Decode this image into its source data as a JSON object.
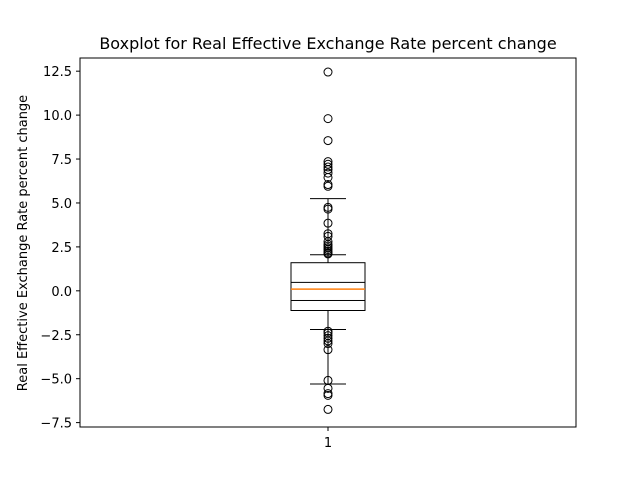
{
  "chart_data": {
    "type": "boxplot",
    "title": "Boxplot for Real Effective Exchange Rate percent change",
    "xlabel": "",
    "ylabel": "Real Effective Exchange Rate percent change",
    "categories": [
      "1"
    ],
    "ylim": [
      -7.75,
      13.25
    ],
    "yticks": [
      -7.5,
      -5.0,
      -2.5,
      0.0,
      2.5,
      5.0,
      7.5,
      10.0,
      12.5
    ],
    "ytick_labels": [
      "−7.5",
      "−5.0",
      "−2.5",
      "0.0",
      "2.5",
      "5.0",
      "7.5",
      "10.0",
      "12.5"
    ],
    "grid": false,
    "colors": {
      "box": "#000000",
      "median": "#ff7f0e",
      "flier": "#000000"
    },
    "boxes": [
      {
        "name": "1",
        "q1": -1.12,
        "median": 0.1,
        "q3": 1.6,
        "notch_low": -0.55,
        "notch_high": 0.48,
        "whisker_low": -2.2,
        "whisker_high": 2.05,
        "cap_outer_low": -5.3,
        "cap_outer_high": 5.25,
        "fliers": [
          12.45,
          9.8,
          8.55,
          7.35,
          7.2,
          7.05,
          6.9,
          6.7,
          6.45,
          6.05,
          5.95,
          4.75,
          4.65,
          3.85,
          3.25,
          3.1,
          2.8,
          2.65,
          2.55,
          2.45,
          2.35,
          2.25,
          2.15,
          2.1,
          -2.3,
          -2.4,
          -2.55,
          -2.7,
          -2.85,
          -3.0,
          -3.35,
          -5.1,
          -5.55,
          -5.85,
          -5.95,
          -6.75
        ]
      }
    ]
  }
}
